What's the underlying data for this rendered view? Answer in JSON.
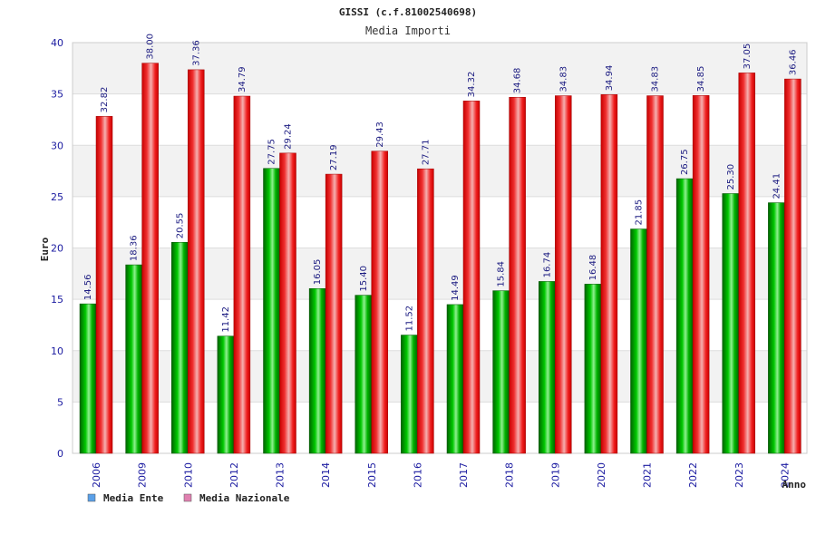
{
  "chart_data": {
    "type": "bar",
    "title": "GISSI (c.f.81002540698)",
    "subtitle": "Media Importi",
    "xlabel": "Anno",
    "ylabel": "Euro",
    "ylim": [
      0,
      40
    ],
    "yticks": [
      0,
      5,
      10,
      15,
      20,
      25,
      30,
      35,
      40
    ],
    "grid": true,
    "legend_position": "bottom-left",
    "categories": [
      "2006",
      "2009",
      "2010",
      "2012",
      "2013",
      "2014",
      "2015",
      "2016",
      "2017",
      "2018",
      "2019",
      "2020",
      "2021",
      "2022",
      "2023",
      "2024"
    ],
    "series": [
      {
        "name": "Media Ente",
        "color": "#00a000",
        "legend_color": "#5aa0e8",
        "values": [
          14.56,
          18.36,
          20.55,
          11.42,
          27.75,
          16.05,
          15.4,
          11.52,
          14.49,
          15.84,
          16.74,
          16.48,
          21.85,
          26.75,
          25.3,
          24.41
        ],
        "labels": [
          "14.56",
          "18.36",
          "20.55",
          "11.42",
          "27.75",
          "16.05",
          "15.40",
          "11.52",
          "14.49",
          "15.84",
          "16.74",
          "16.48",
          "21.85",
          "26.75",
          "25.30",
          "24.41"
        ]
      },
      {
        "name": "Media Nazionale",
        "color": "#e00000",
        "legend_color": "#e080b0",
        "values": [
          32.82,
          38.0,
          37.36,
          34.79,
          29.24,
          27.19,
          29.43,
          27.71,
          34.32,
          34.68,
          34.83,
          34.94,
          34.83,
          34.85,
          37.05,
          36.46
        ],
        "labels": [
          "32.82",
          "38.00",
          "37.36",
          "34.79",
          "29.24",
          "27.19",
          "29.43",
          "27.71",
          "34.32",
          "34.68",
          "34.83",
          "34.94",
          "34.83",
          "34.85",
          "37.05",
          "36.46"
        ]
      }
    ]
  }
}
